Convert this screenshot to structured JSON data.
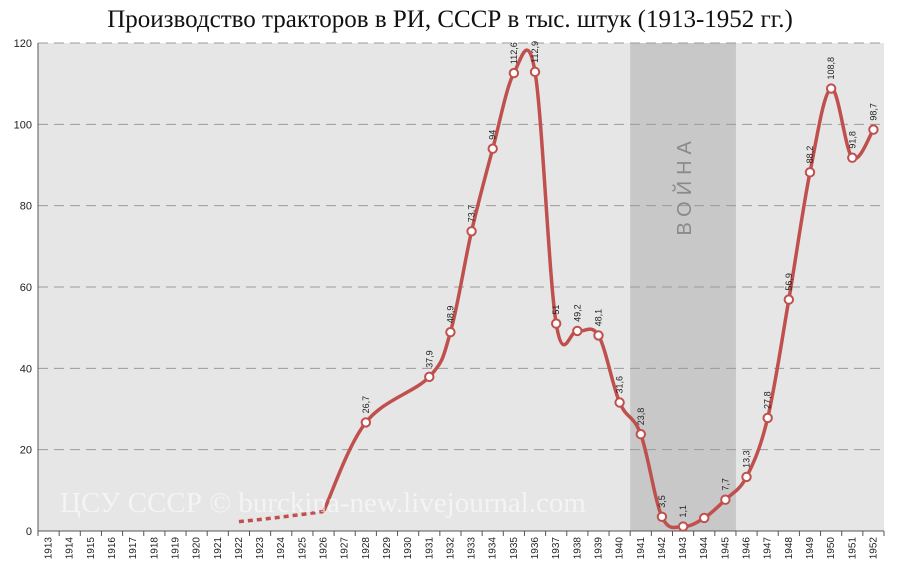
{
  "chart_data": {
    "type": "line",
    "title": "Производство тракторов в РИ, СССР в тыс. штук (1913-1952 гг.)",
    "xlabel": "",
    "ylabel": "",
    "x": [
      "1913",
      "1914",
      "1915",
      "1916",
      "1917",
      "1918",
      "1919",
      "1920",
      "1921",
      "1922",
      "1923",
      "1924",
      "1925",
      "1926",
      "1927",
      "1928",
      "1929",
      "1930",
      "1931",
      "1932",
      "1933",
      "1934",
      "1935",
      "1936",
      "1937",
      "1938",
      "1939",
      "1940",
      "1941",
      "1942",
      "1943",
      "1944",
      "1945",
      "1946",
      "1947",
      "1948",
      "1949",
      "1950",
      "1951",
      "1952"
    ],
    "ylim": [
      0,
      120
    ],
    "yticks": [
      0,
      20,
      40,
      60,
      80,
      100,
      120
    ],
    "grid": true,
    "series": [
      {
        "points": [
          {
            "x": "1928",
            "y": 26.7,
            "label": "26,7"
          },
          {
            "x": "1931",
            "y": 37.9,
            "label": "37,9"
          },
          {
            "x": "1932",
            "y": 48.9,
            "label": "48,9"
          },
          {
            "x": "1933",
            "y": 73.7,
            "label": "73,7"
          },
          {
            "x": "1934",
            "y": 94,
            "label": "94"
          },
          {
            "x": "1935",
            "y": 112.6,
            "label": "112,6"
          },
          {
            "x": "1936",
            "y": 112.9,
            "label": "112,9"
          },
          {
            "x": "1937",
            "y": 51,
            "label": "51"
          },
          {
            "x": "1938",
            "y": 49.2,
            "label": "49,2"
          },
          {
            "x": "1939",
            "y": 48.1,
            "label": "48,1"
          },
          {
            "x": "1940",
            "y": 31.6,
            "label": "31,6"
          },
          {
            "x": "1941",
            "y": 23.8,
            "label": "23,8"
          },
          {
            "x": "1942",
            "y": 3.5,
            "label": "3,5"
          },
          {
            "x": "1943",
            "y": 1.1,
            "label": "1,1"
          },
          {
            "x": "1944",
            "y": 3.2,
            "label": ""
          },
          {
            "x": "1945",
            "y": 7.7,
            "label": "7,7"
          },
          {
            "x": "1946",
            "y": 13.3,
            "label": "13,3"
          },
          {
            "x": "1947",
            "y": 27.8,
            "label": "27,8"
          },
          {
            "x": "1948",
            "y": 56.9,
            "label": "56,9"
          },
          {
            "x": "1949",
            "y": 88.2,
            "label": "88,2"
          },
          {
            "x": "1950",
            "y": 108.8,
            "label": "108,8"
          },
          {
            "x": "1951",
            "y": 91.8,
            "label": "91,8"
          },
          {
            "x": "1952",
            "y": 98.7,
            "label": "98,7"
          }
        ],
        "dotted_segment": [
          {
            "x": "1922",
            "y": 2.3
          },
          {
            "x": "1926",
            "y": 4.8
          }
        ]
      }
    ],
    "shaded_band": {
      "from": "1941",
      "to": "1945",
      "label": "ВОЙНА"
    },
    "watermark": "ЦСУ СССР © burckina-new.livejournal.com"
  },
  "colors": {
    "plot_background": "#e6e6e6",
    "band": "#c8c8c8",
    "line": "#c0504d",
    "marker_fill": "#ffffff",
    "grid": "#9a9a9a"
  }
}
